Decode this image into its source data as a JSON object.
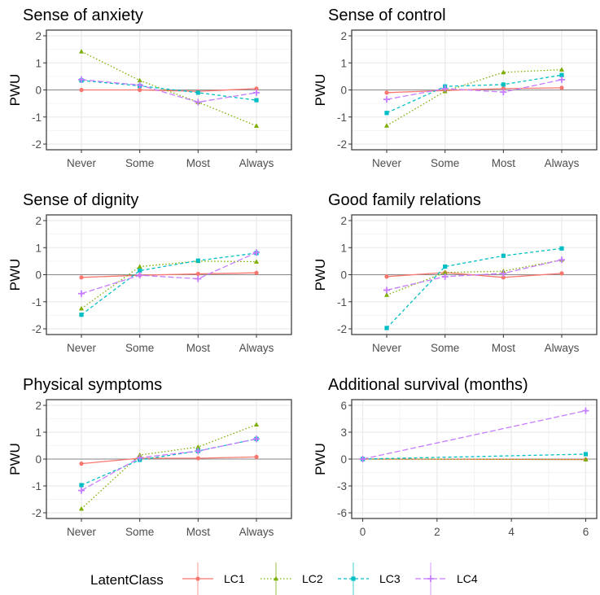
{
  "chart_data": [
    {
      "type": "line",
      "title": "Sense of anxiety",
      "xlabel": "",
      "ylabel": "PWU",
      "categories": [
        "Never",
        "Some",
        "Most",
        "Always"
      ],
      "ylim": [
        -2,
        2
      ],
      "yticks": [
        -2,
        -1,
        0,
        1,
        2
      ],
      "grid": true,
      "series": [
        {
          "name": "LC1",
          "values": [
            0.0,
            0.0,
            -0.05,
            0.05
          ]
        },
        {
          "name": "LC2",
          "values": [
            1.42,
            0.35,
            -0.45,
            -1.33
          ]
        },
        {
          "name": "LC3",
          "values": [
            0.35,
            0.15,
            -0.1,
            -0.38
          ]
        },
        {
          "name": "LC4",
          "values": [
            0.38,
            0.18,
            -0.45,
            -0.1
          ]
        }
      ]
    },
    {
      "type": "line",
      "title": "Sense of control",
      "xlabel": "",
      "ylabel": "PWU",
      "categories": [
        "Never",
        "Some",
        "Most",
        "Always"
      ],
      "ylim": [
        -2,
        2
      ],
      "yticks": [
        -2,
        -1,
        0,
        1,
        2
      ],
      "grid": true,
      "series": [
        {
          "name": "LC1",
          "values": [
            -0.1,
            -0.02,
            0.05,
            0.08
          ]
        },
        {
          "name": "LC2",
          "values": [
            -1.32,
            -0.05,
            0.65,
            0.75
          ]
        },
        {
          "name": "LC3",
          "values": [
            -0.85,
            0.13,
            0.2,
            0.55
          ]
        },
        {
          "name": "LC4",
          "values": [
            -0.35,
            0.05,
            -0.08,
            0.38
          ]
        }
      ]
    },
    {
      "type": "line",
      "title": "Sense of dignity",
      "xlabel": "",
      "ylabel": "PWU",
      "categories": [
        "Never",
        "Some",
        "Most",
        "Always"
      ],
      "ylim": [
        -2,
        2
      ],
      "yticks": [
        -2,
        -1,
        0,
        1,
        2
      ],
      "grid": true,
      "series": [
        {
          "name": "LC1",
          "values": [
            -0.1,
            -0.02,
            0.03,
            0.07
          ]
        },
        {
          "name": "LC2",
          "values": [
            -1.25,
            0.3,
            0.5,
            0.48
          ]
        },
        {
          "name": "LC3",
          "values": [
            -1.48,
            0.15,
            0.52,
            0.8
          ]
        },
        {
          "name": "LC4",
          "values": [
            -0.7,
            -0.02,
            -0.15,
            0.82
          ]
        }
      ]
    },
    {
      "type": "line",
      "title": "Good family relations",
      "xlabel": "",
      "ylabel": "PWU",
      "categories": [
        "Never",
        "Some",
        "Most",
        "Always"
      ],
      "ylim": [
        -2,
        2
      ],
      "yticks": [
        -2,
        -1,
        0,
        1,
        2
      ],
      "grid": true,
      "series": [
        {
          "name": "LC1",
          "values": [
            -0.07,
            0.08,
            -0.1,
            0.05
          ]
        },
        {
          "name": "LC2",
          "values": [
            -0.75,
            0.08,
            0.13,
            0.55
          ]
        },
        {
          "name": "LC3",
          "values": [
            -1.97,
            0.3,
            0.7,
            0.97
          ]
        },
        {
          "name": "LC4",
          "values": [
            -0.57,
            -0.07,
            0.05,
            0.55
          ]
        }
      ]
    },
    {
      "type": "line",
      "title": "Physical symptoms",
      "xlabel": "",
      "ylabel": "PWU",
      "categories": [
        "Never",
        "Some",
        "Most",
        "Always"
      ],
      "ylim": [
        -2,
        2
      ],
      "yticks": [
        -2,
        -1,
        0,
        1,
        2
      ],
      "grid": true,
      "series": [
        {
          "name": "LC1",
          "values": [
            -0.17,
            0.03,
            0.03,
            0.08
          ]
        },
        {
          "name": "LC2",
          "values": [
            -1.85,
            0.15,
            0.45,
            1.28
          ]
        },
        {
          "name": "LC3",
          "values": [
            -0.97,
            -0.03,
            0.3,
            0.75
          ]
        },
        {
          "name": "LC4",
          "values": [
            -1.17,
            0.05,
            0.3,
            0.75
          ]
        }
      ]
    },
    {
      "type": "line",
      "title": "Additional survival (months)",
      "xlabel": "",
      "ylabel": "PWU",
      "x": [
        0,
        6
      ],
      "xlim": [
        0,
        6
      ],
      "xticks": [
        0,
        2,
        4,
        6
      ],
      "ylim": [
        -6,
        6
      ],
      "yticks": [
        -6,
        -3,
        0,
        3,
        6
      ],
      "grid": true,
      "series": [
        {
          "name": "LC1",
          "values": [
            0.0,
            -0.05
          ]
        },
        {
          "name": "LC2",
          "values": [
            0.0,
            -0.05
          ]
        },
        {
          "name": "LC3",
          "values": [
            0.0,
            0.55
          ]
        },
        {
          "name": "LC4",
          "values": [
            0.0,
            5.4
          ]
        }
      ]
    }
  ],
  "legend": {
    "title": "LatentClass",
    "placement": "bottom",
    "items": [
      {
        "name": "LC1",
        "color": "#F8766D",
        "linetype": "solid",
        "shape": "circle"
      },
      {
        "name": "LC2",
        "color": "#7CAE00",
        "linetype": "dotted",
        "shape": "triangle"
      },
      {
        "name": "LC3",
        "color": "#00BFC4",
        "linetype": "dashed",
        "shape": "square"
      },
      {
        "name": "LC4",
        "color": "#C77CFF",
        "linetype": "longdash",
        "shape": "plus"
      }
    ]
  }
}
